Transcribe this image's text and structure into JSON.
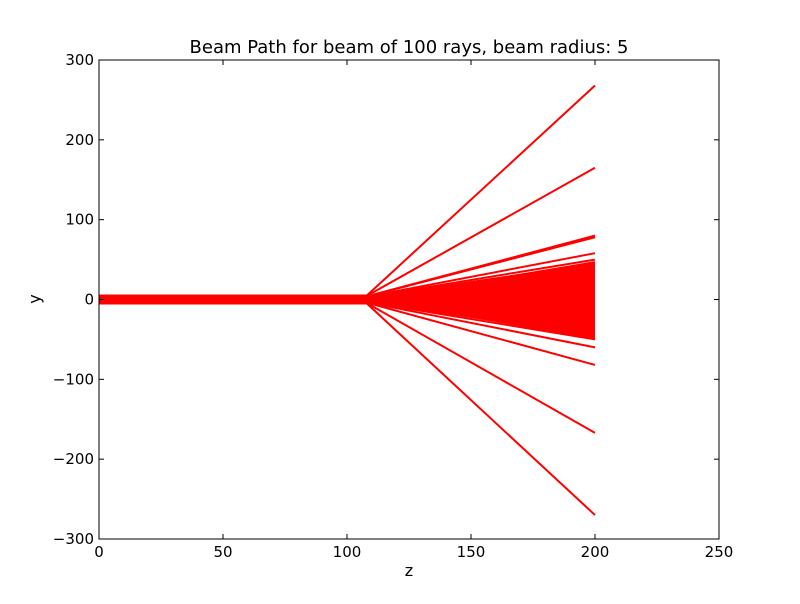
{
  "chart_data": {
    "type": "line",
    "title": "Beam Path for beam of 100 rays, beam radius: 5",
    "xlabel": "z",
    "ylabel": "y",
    "xlim": [
      0,
      250
    ],
    "ylim": [
      -300,
      300
    ],
    "xticks": [
      0,
      50,
      100,
      150,
      200,
      250
    ],
    "yticks": [
      300,
      200,
      100,
      0,
      -100,
      -200,
      -300
    ],
    "xtick_labels": [
      "0",
      "50",
      "100",
      "150",
      "200",
      "250"
    ],
    "ytick_labels": [
      "300",
      "200",
      "100",
      "0",
      "−100",
      "−200",
      "−300"
    ],
    "grid": false,
    "legend": "none",
    "line_color": "#ff0000",
    "series": [
      {
        "x": [
          0,
          108,
          200
        ],
        "y": [
          5,
          5,
          268
        ]
      },
      {
        "x": [
          0,
          108,
          200
        ],
        "y": [
          4.5,
          4.5,
          165
        ]
      },
      {
        "x": [
          0,
          108,
          200
        ],
        "y": [
          4,
          4,
          80
        ]
      },
      {
        "x": [
          0,
          108,
          200
        ],
        "y": [
          3.8,
          3.8,
          78
        ]
      },
      {
        "x": [
          0,
          108,
          200
        ],
        "y": [
          3.5,
          3.5,
          58
        ]
      },
      {
        "x": [
          0,
          108,
          200
        ],
        "y": [
          3,
          3,
          50
        ]
      },
      {
        "x": [
          0,
          108,
          200
        ],
        "y": [
          2.5,
          2.5,
          45
        ]
      },
      {
        "x": [
          0,
          108,
          200
        ],
        "y": [
          2,
          2,
          38
        ]
      },
      {
        "x": [
          0,
          108,
          200
        ],
        "y": [
          1.5,
          1.5,
          30
        ]
      },
      {
        "x": [
          0,
          108,
          200
        ],
        "y": [
          1,
          1,
          22
        ]
      },
      {
        "x": [
          0,
          108,
          200
        ],
        "y": [
          0.5,
          0.5,
          12
        ]
      },
      {
        "x": [
          0,
          108,
          200
        ],
        "y": [
          0,
          0,
          0
        ]
      },
      {
        "x": [
          0,
          108,
          200
        ],
        "y": [
          -0.5,
          -0.5,
          -12
        ]
      },
      {
        "x": [
          0,
          108,
          200
        ],
        "y": [
          -1,
          -1,
          -22
        ]
      },
      {
        "x": [
          0,
          108,
          200
        ],
        "y": [
          -1.5,
          -1.5,
          -30
        ]
      },
      {
        "x": [
          0,
          108,
          200
        ],
        "y": [
          -2,
          -2,
          -38
        ]
      },
      {
        "x": [
          0,
          108,
          200
        ],
        "y": [
          -2.5,
          -2.5,
          -45
        ]
      },
      {
        "x": [
          0,
          108,
          200
        ],
        "y": [
          -3,
          -3,
          -50
        ]
      },
      {
        "x": [
          0,
          108,
          200
        ],
        "y": [
          -3.5,
          -3.5,
          -60
        ]
      },
      {
        "x": [
          0,
          108,
          200
        ],
        "y": [
          -4,
          -4,
          -82
        ]
      },
      {
        "x": [
          0,
          108,
          200
        ],
        "y": [
          -4.5,
          -4.5,
          -167
        ]
      },
      {
        "x": [
          0,
          108,
          200
        ],
        "y": [
          -5,
          -5,
          -270
        ]
      }
    ],
    "fill_band": {
      "x": [
        108,
        200
      ],
      "y_top": [
        0,
        48
      ],
      "y_bottom": [
        0,
        -50
      ]
    }
  }
}
